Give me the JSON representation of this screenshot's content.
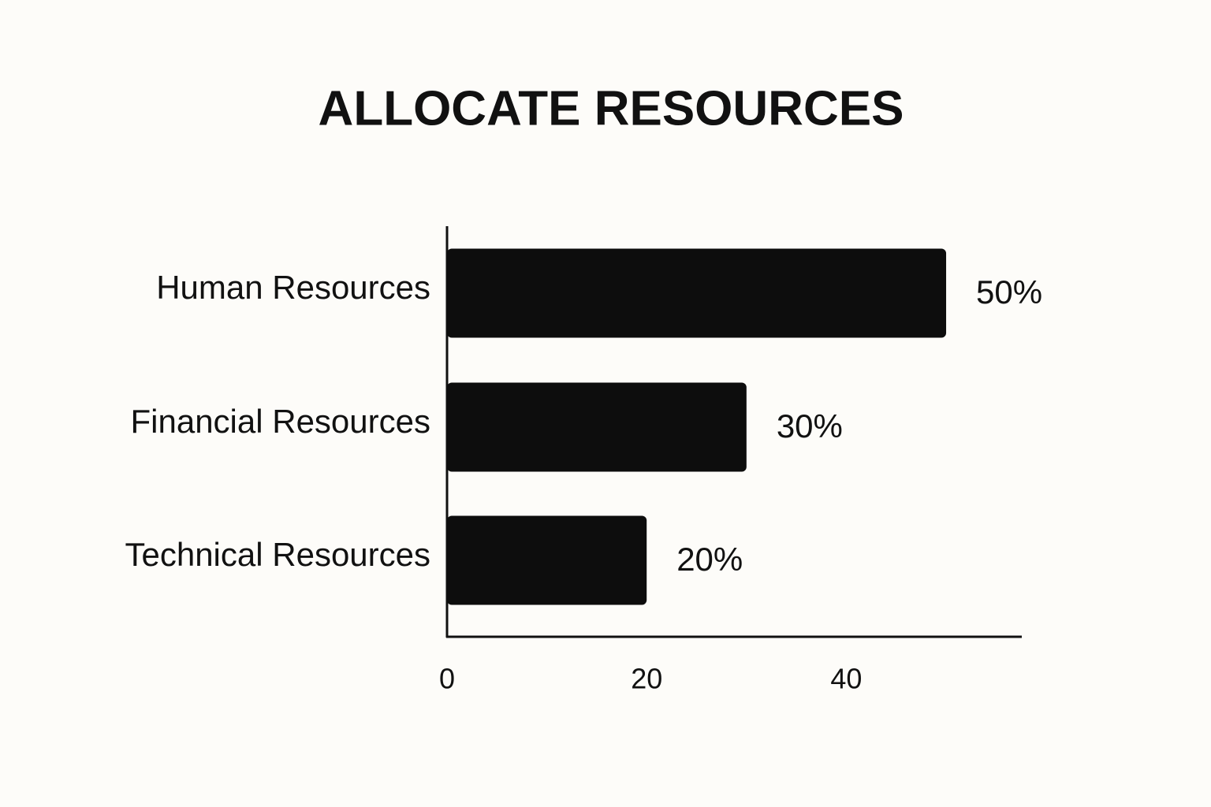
{
  "chart_data": {
    "type": "bar",
    "orientation": "horizontal",
    "title": "ALLOCATE RESOURCES",
    "categories": [
      "Human Resources",
      "Financial Resources",
      "Technical Resources"
    ],
    "values": [
      50,
      30,
      20
    ],
    "value_labels": [
      "50%",
      "30%",
      "20%"
    ],
    "color": "#0d0d0d",
    "xlim": [
      0,
      57.5
    ],
    "xticks": [
      0,
      20,
      40
    ],
    "grid": false
  }
}
